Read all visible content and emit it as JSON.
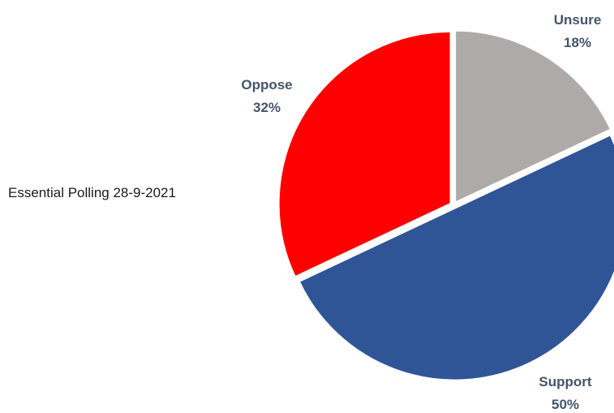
{
  "chart_data": {
    "type": "pie",
    "title": "Essential Polling 28-9-2021",
    "slices": [
      {
        "label": "Unsure",
        "value": 18,
        "value_label": "18%",
        "color": "#aeaaaa"
      },
      {
        "label": "Support",
        "value": 50,
        "value_label": "50%",
        "color": "#2f5597"
      },
      {
        "label": "Oppose",
        "value": 32,
        "value_label": "32%",
        "color": "#ff0000"
      }
    ],
    "label_color": "#44546a",
    "start_angle_deg": 0,
    "direction": "clockwise"
  }
}
